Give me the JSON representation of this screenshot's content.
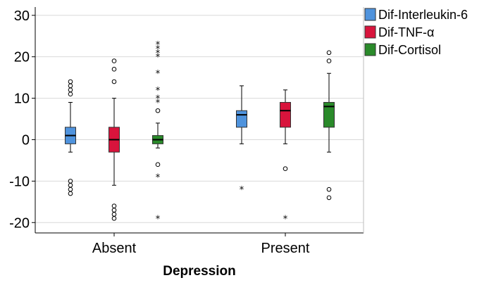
{
  "chart_data": {
    "type": "boxplot",
    "xlabel": "Depression",
    "ylabel": "",
    "categories": [
      "Absent",
      "Present"
    ],
    "ylim": [
      -22.5,
      32
    ],
    "yticks": [
      -20,
      -10,
      0,
      10,
      20,
      30
    ],
    "grid": true,
    "legend_position": "top-right",
    "series": [
      {
        "name": "Dif-Interleukin-6",
        "color": "#4f93dd",
        "boxes": [
          {
            "category": "Absent",
            "q1": -1,
            "median": 1,
            "q3": 3,
            "whisker_low": -3,
            "whisker_high": 9,
            "outliers": [
              14,
              13,
              12,
              11,
              -10,
              -11,
              -12,
              -13
            ],
            "extremes": []
          },
          {
            "category": "Present",
            "q1": 3,
            "median": 6,
            "q3": 7,
            "whisker_low": -1,
            "whisker_high": 13,
            "outliers": [],
            "extremes": [
              -12
            ]
          }
        ]
      },
      {
        "name": "Dif-TNF-α",
        "color": "#d8143c",
        "boxes": [
          {
            "category": "Absent",
            "q1": -3,
            "median": 0,
            "q3": 3,
            "whisker_low": -11,
            "whisker_high": 10,
            "outliers": [
              19,
              17,
              14,
              -16,
              -17,
              -18,
              -19
            ],
            "extremes": []
          },
          {
            "category": "Present",
            "q1": 3,
            "median": 7,
            "q3": 9,
            "whisker_low": -1,
            "whisker_high": 12,
            "outliers": [
              -7
            ],
            "extremes": [
              -19
            ]
          }
        ]
      },
      {
        "name": "Dif-Cortisol",
        "color": "#2a8a2a",
        "boxes": [
          {
            "category": "Absent",
            "q1": -1,
            "median": 0,
            "q3": 1,
            "whisker_low": -2,
            "whisker_high": 4,
            "outliers": [
              7,
              -6
            ],
            "extremes": [
              23,
              22,
              21,
              20,
              16,
              12,
              10,
              9,
              -9,
              -19
            ]
          },
          {
            "category": "Present",
            "q1": 3,
            "median": 8,
            "q3": 9,
            "whisker_low": -3,
            "whisker_high": 16,
            "outliers": [
              21,
              19,
              -12,
              -14
            ],
            "extremes": []
          }
        ]
      }
    ]
  }
}
